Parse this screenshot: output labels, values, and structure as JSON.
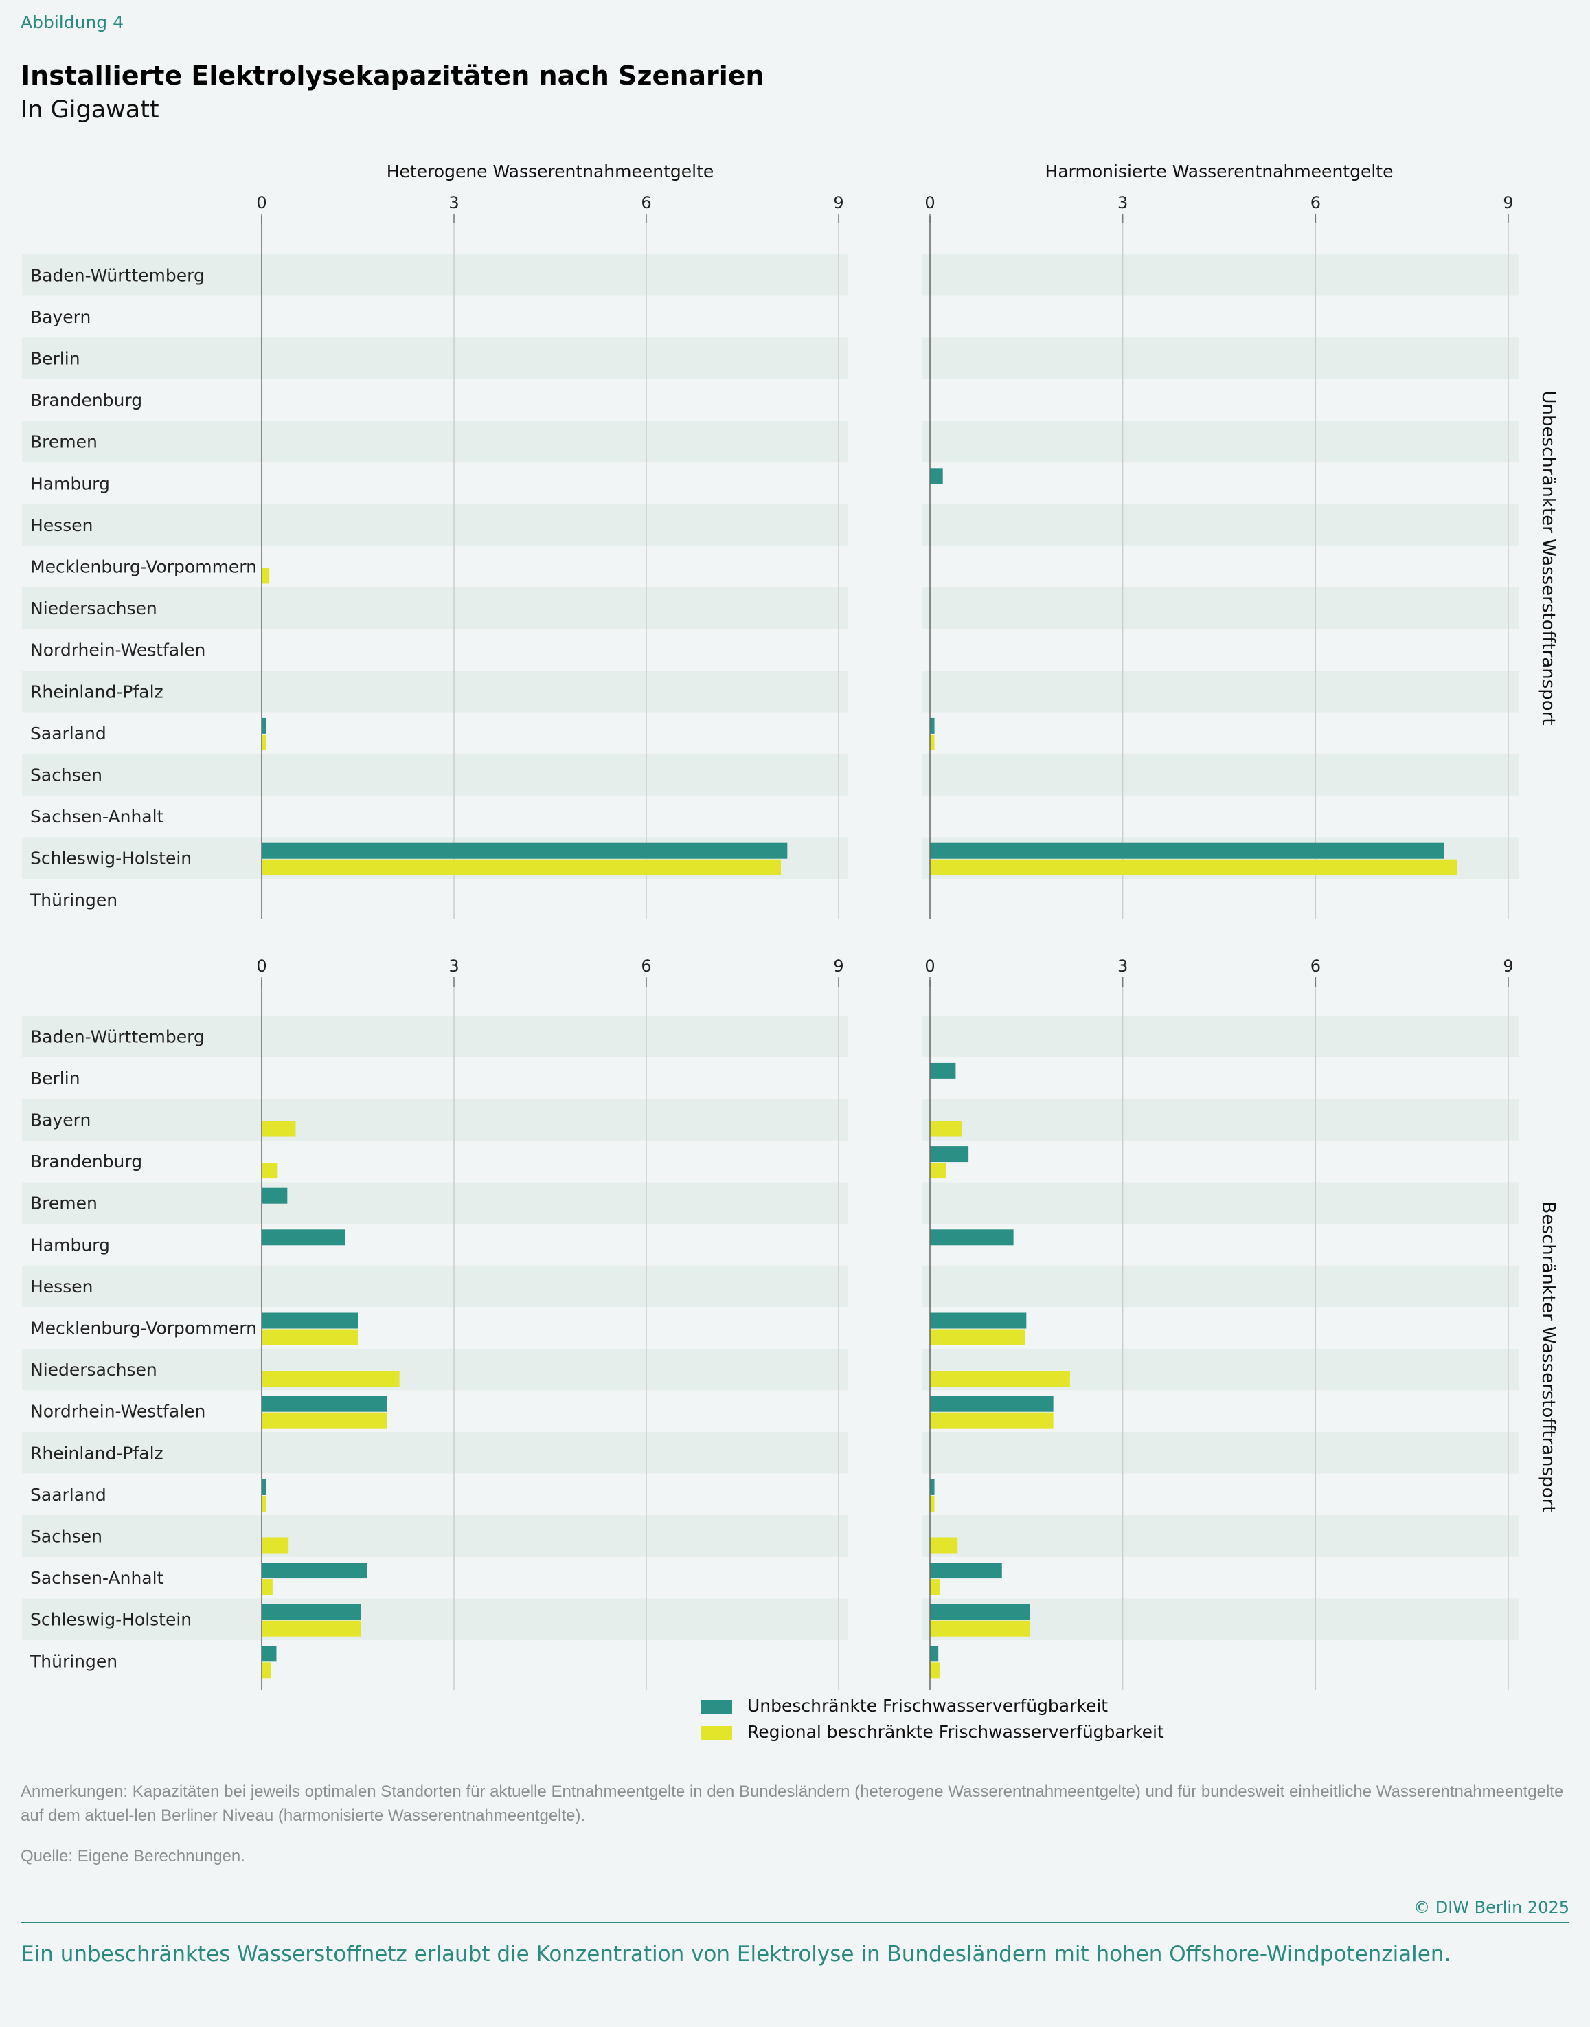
{
  "figure_label": "Abbildung 4",
  "title": "Installierte Elektrolysekapazitäten nach Szenarien",
  "subtitle": "In Gigawatt",
  "colors": {
    "unbeschraenkt": "#2a8f85",
    "regional": "#e3e52a",
    "band": "#e6eeec",
    "accent": "#2a8a80"
  },
  "legend": [
    {
      "label": "Unbeschränkte Frischwasserverfügbarkeit",
      "color": "#2a8f85"
    },
    {
      "label": "Regional beschränkte Frischwasserverfügbarkeit",
      "color": "#e3e52a"
    }
  ],
  "row_labels": [
    "Unbeschränkter Wasserstofftransport",
    "Beschränkter Wasserstofftransport"
  ],
  "chart_data": [
    {
      "type": "bar",
      "orientation": "horizontal",
      "title": "Heterogene Wasserentnahmeentgelte",
      "xlim": [
        0,
        9
      ],
      "xticks": [
        0,
        3,
        6,
        9
      ],
      "grid": true,
      "categories": [
        "Baden-Württemberg",
        "Bayern",
        "Berlin",
        "Brandenburg",
        "Bremen",
        "Hamburg",
        "Hessen",
        "Mecklenburg-Vorpommern",
        "Niedersachsen",
        "Nordrhein-Westfalen",
        "Rheinland-Pfalz",
        "Saarland",
        "Sachsen",
        "Sachsen-Anhalt",
        "Schleswig-Holstein",
        "Thüringen"
      ],
      "series": [
        {
          "name": "Unbeschränkte Frischwasserverfügbarkeit",
          "values": [
            0,
            0,
            0,
            0,
            0,
            0,
            0,
            0,
            0,
            0,
            0,
            0.07,
            0,
            0,
            8.2,
            0
          ]
        },
        {
          "name": "Regional beschränkte Frischwasserverfügbarkeit",
          "values": [
            0,
            0,
            0,
            0,
            0,
            0,
            0,
            0.12,
            0,
            0,
            0,
            0.07,
            0,
            0,
            8.1,
            0
          ]
        }
      ]
    },
    {
      "type": "bar",
      "orientation": "horizontal",
      "title": "Harmonisierte Wasserentnahmeentgelte",
      "xlim": [
        0,
        9
      ],
      "xticks": [
        0,
        3,
        6,
        9
      ],
      "grid": true,
      "categories": [
        "Baden-Württemberg",
        "Bayern",
        "Berlin",
        "Brandenburg",
        "Bremen",
        "Hamburg",
        "Hessen",
        "Mecklenburg-Vorpommern",
        "Niedersachsen",
        "Nordrhein-Westfalen",
        "Rheinland-Pfalz",
        "Saarland",
        "Sachsen",
        "Sachsen-Anhalt",
        "Schleswig-Holstein",
        "Thüringen"
      ],
      "series": [
        {
          "name": "Unbeschränkte Frischwasserverfügbarkeit",
          "values": [
            0,
            0,
            0,
            0,
            0,
            0.2,
            0,
            0,
            0,
            0,
            0,
            0.07,
            0,
            0,
            8.0,
            0
          ]
        },
        {
          "name": "Regional beschränkte Frischwasserverfügbarkeit",
          "values": [
            0,
            0,
            0,
            0,
            0,
            0,
            0,
            0,
            0,
            0,
            0,
            0.07,
            0,
            0,
            8.2,
            0
          ]
        }
      ]
    },
    {
      "type": "bar",
      "orientation": "horizontal",
      "title": "",
      "xlim": [
        0,
        9
      ],
      "xticks": [
        0,
        3,
        6,
        9
      ],
      "grid": true,
      "categories": [
        "Baden-Württemberg",
        "Berlin",
        "Bayern",
        "Brandenburg",
        "Bremen",
        "Hamburg",
        "Hessen",
        "Mecklenburg-Vorpommern",
        "Niedersachsen",
        "Nordrhein-Westfalen",
        "Rheinland-Pfalz",
        "Saarland",
        "Sachsen",
        "Sachsen-Anhalt",
        "Schleswig-Holstein",
        "Thüringen"
      ],
      "series": [
        {
          "name": "Unbeschränkte Frischwasserverfügbarkeit",
          "values": [
            0,
            0,
            0,
            0,
            0.4,
            1.3,
            0,
            1.5,
            0,
            1.95,
            0,
            0.07,
            0,
            1.65,
            1.55,
            0.23
          ]
        },
        {
          "name": "Regional beschränkte Frischwasserverfügbarkeit",
          "values": [
            0,
            0,
            0.53,
            0.25,
            0,
            0,
            0,
            1.5,
            2.15,
            1.95,
            0,
            0.07,
            0.42,
            0.17,
            1.55,
            0.15
          ]
        }
      ]
    },
    {
      "type": "bar",
      "orientation": "horizontal",
      "title": "",
      "xlim": [
        0,
        9
      ],
      "xticks": [
        0,
        3,
        6,
        9
      ],
      "grid": true,
      "categories": [
        "Baden-Württemberg",
        "Berlin",
        "Bayern",
        "Brandenburg",
        "Bremen",
        "Hamburg",
        "Hessen",
        "Mecklenburg-Vorpommern",
        "Niedersachsen",
        "Nordrhein-Westfalen",
        "Rheinland-Pfalz",
        "Saarland",
        "Sachsen",
        "Sachsen-Anhalt",
        "Schleswig-Holstein",
        "Thüringen"
      ],
      "series": [
        {
          "name": "Unbeschränkte Frischwasserverfügbarkeit",
          "values": [
            0,
            0.4,
            0,
            0.6,
            0,
            1.3,
            0,
            1.5,
            0,
            1.92,
            0,
            0.07,
            0,
            1.12,
            1.55,
            0.13
          ]
        },
        {
          "name": "Regional beschränkte Frischwasserverfügbarkeit",
          "values": [
            0,
            0,
            0.5,
            0.25,
            0,
            0,
            0,
            1.48,
            2.18,
            1.92,
            0,
            0.07,
            0.43,
            0.15,
            1.55,
            0.15
          ]
        }
      ]
    }
  ],
  "notes": "Anmerkungen: Kapazitäten bei jeweils optimalen Standorten für aktuelle Entnahmeentgelte in den Bundesländern (heterogene Wasserentnahmeentgelte) und für bundesweit einheitliche Wasserentnahmeentgelte auf dem aktuel-len Berliner Niveau (harmonisierte Wasserentnahmeentgelte).",
  "source": "Quelle: Eigene Berechnungen.",
  "copyright": "© DIW Berlin 2025",
  "footer": "Ein unbeschränktes Wasserstoffnetz erlaubt die Konzentration von Elektrolyse in Bundesländern mit hohen Offshore-Windpotenzialen."
}
